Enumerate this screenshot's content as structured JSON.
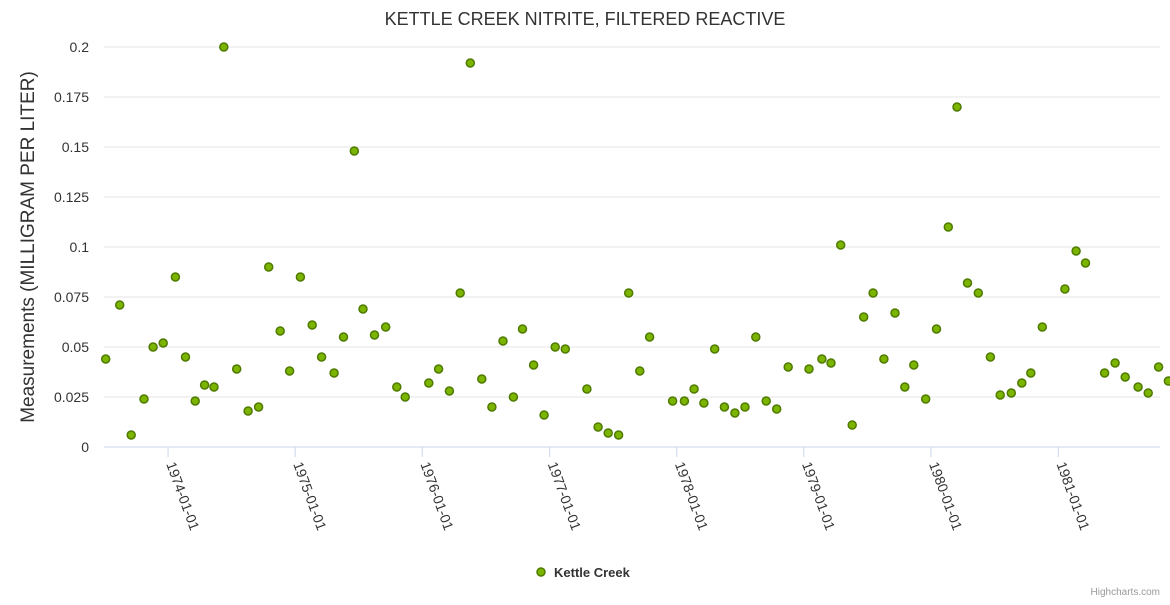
{
  "chart_data": {
    "type": "scatter",
    "title": "KETTLE CREEK NITRITE, FILTERED REACTIVE",
    "xlabel": "",
    "ylabel": "Measurements (MILLIGRAM PER LITER)",
    "xlim": [
      "1973-07-01",
      "1981-10-20"
    ],
    "ylim": [
      0,
      0.2
    ],
    "yticks": [
      "0",
      "0.025",
      "0.05",
      "0.075",
      "0.1",
      "0.125",
      "0.15",
      "0.175",
      "0.2"
    ],
    "xticks": [
      "1974-01-01",
      "1975-01-01",
      "1976-01-01",
      "1977-01-01",
      "1978-01-01",
      "1979-01-01",
      "1980-01-01",
      "1981-01-01"
    ],
    "grid": true,
    "legend_position": "bottom-center",
    "series_color": "#7cb500",
    "marker_stroke": "#4e7a00",
    "series": [
      {
        "name": "Kettle Creek",
        "x": [
          "1973-07-06",
          "1973-08-15",
          "1973-09-17",
          "1973-10-24",
          "1973-11-19",
          "1973-12-18",
          "1974-01-22",
          "1974-02-20",
          "1974-03-20",
          "1974-04-16",
          "1974-05-13",
          "1974-06-10",
          "1974-07-17",
          "1974-08-19",
          "1974-09-18",
          "1974-10-17",
          "1974-11-19",
          "1974-12-16",
          "1975-01-16",
          "1975-02-19",
          "1975-03-18",
          "1975-04-23",
          "1975-05-20",
          "1975-06-20",
          "1975-07-15",
          "1975-08-17",
          "1975-09-18",
          "1975-10-20",
          "1975-11-13",
          "1976-01-20",
          "1976-02-17",
          "1976-03-19",
          "1976-04-19",
          "1976-05-18",
          "1976-06-20",
          "1976-07-19",
          "1976-08-20",
          "1976-09-19",
          "1976-10-15",
          "1976-11-16",
          "1976-12-16",
          "1977-01-17",
          "1977-02-15",
          "1977-04-18",
          "1977-05-20",
          "1977-06-18",
          "1977-07-18",
          "1977-08-16",
          "1977-09-17",
          "1977-10-15",
          "1977-12-20",
          "1978-01-23",
          "1978-02-20",
          "1978-03-20",
          "1978-04-20",
          "1978-05-18",
          "1978-06-17",
          "1978-07-16",
          "1978-08-16",
          "1978-09-15",
          "1978-10-15",
          "1978-11-17",
          "1979-01-16",
          "1979-02-22",
          "1979-03-20",
          "1979-04-17",
          "1979-05-20",
          "1979-06-22",
          "1979-07-19",
          "1979-08-19",
          "1979-09-20",
          "1979-10-18",
          "1979-11-13",
          "1979-12-17",
          "1980-01-17",
          "1980-02-20",
          "1980-03-16",
          "1980-04-15",
          "1980-05-16",
          "1980-06-20",
          "1980-07-18",
          "1980-08-19",
          "1980-09-18",
          "1980-10-14",
          "1980-11-16",
          "1981-01-20",
          "1981-02-21",
          "1981-03-20",
          "1981-05-14",
          "1981-06-13",
          "1981-07-12",
          "1981-08-18",
          "1981-09-16",
          "1981-10-16",
          "1981-11-13"
        ],
        "values": [
          0.044,
          0.071,
          0.006,
          0.024,
          0.05,
          0.052,
          0.085,
          0.045,
          0.023,
          0.031,
          0.03,
          0.2,
          0.039,
          0.018,
          0.02,
          0.09,
          0.058,
          0.038,
          0.085,
          0.061,
          0.045,
          0.037,
          0.055,
          0.148,
          0.069,
          0.056,
          0.06,
          0.03,
          0.025,
          0.032,
          0.039,
          0.028,
          0.077,
          0.192,
          0.034,
          0.02,
          0.053,
          0.025,
          0.059,
          0.041,
          0.016,
          0.05,
          0.049,
          0.029,
          0.01,
          0.007,
          0.006,
          0.077,
          0.038,
          0.055,
          0.023,
          0.023,
          0.029,
          0.022,
          0.049,
          0.02,
          0.017,
          0.02,
          0.055,
          0.023,
          0.019,
          0.04,
          0.039,
          0.044,
          0.042,
          0.101,
          0.011,
          0.065,
          0.077,
          0.044,
          0.067,
          0.03,
          0.041,
          0.024,
          0.059,
          0.11,
          0.17,
          0.082,
          0.077,
          0.045,
          0.026,
          0.027,
          0.032,
          0.037,
          0.06,
          0.079,
          0.098,
          0.092,
          0.037,
          0.042,
          0.035,
          0.03,
          0.027,
          0.04,
          0.033
        ]
      }
    ]
  },
  "credits": "Highcharts.com"
}
